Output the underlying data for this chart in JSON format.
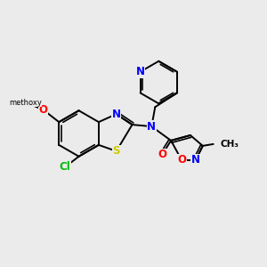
{
  "background_color": "#ebebeb",
  "bond_color": "#000000",
  "atom_colors": {
    "N": "#0000ff",
    "O": "#ff0000",
    "S": "#cccc00",
    "Cl": "#00bb00",
    "C": "#000000"
  },
  "figsize": [
    3.0,
    3.0
  ],
  "dpi": 100
}
